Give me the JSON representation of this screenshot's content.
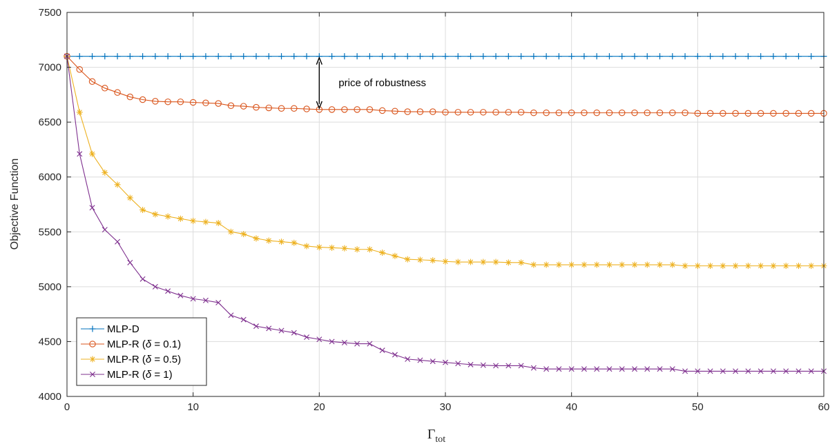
{
  "chart_data": {
    "type": "line",
    "xlabel_main": "Γ",
    "xlabel_sub": "tot",
    "ylabel": "Objective Function",
    "xlim": [
      0,
      60
    ],
    "ylim": [
      4000,
      7500
    ],
    "xticks": [
      0,
      10,
      20,
      30,
      40,
      50,
      60
    ],
    "yticks": [
      4000,
      4500,
      5000,
      5500,
      6000,
      6500,
      7000,
      7500
    ],
    "grid": true,
    "legend_position": "bottom-left",
    "x": [
      0,
      1,
      2,
      3,
      4,
      5,
      6,
      7,
      8,
      9,
      10,
      11,
      12,
      13,
      14,
      15,
      16,
      17,
      18,
      19,
      20,
      21,
      22,
      23,
      24,
      25,
      26,
      27,
      28,
      29,
      30,
      31,
      32,
      33,
      34,
      35,
      36,
      37,
      38,
      39,
      40,
      41,
      42,
      43,
      44,
      45,
      46,
      47,
      48,
      49,
      50,
      51,
      52,
      53,
      54,
      55,
      56,
      57,
      58,
      59,
      60
    ],
    "series": [
      {
        "name": "MLP-D",
        "color": "#0072BD",
        "marker": "plus",
        "values": [
          7100,
          7100,
          7100,
          7100,
          7100,
          7100,
          7100,
          7100,
          7100,
          7100,
          7100,
          7100,
          7100,
          7100,
          7100,
          7100,
          7100,
          7100,
          7100,
          7100,
          7100,
          7100,
          7100,
          7100,
          7100,
          7100,
          7100,
          7100,
          7100,
          7100,
          7100,
          7100,
          7100,
          7100,
          7100,
          7100,
          7100,
          7100,
          7100,
          7100,
          7100,
          7100,
          7100,
          7100,
          7100,
          7100,
          7100,
          7100,
          7100,
          7100,
          7100,
          7100,
          7100,
          7100,
          7100,
          7100,
          7100,
          7100,
          7100,
          7100,
          7100
        ]
      },
      {
        "name_prefix": "MLP-R (",
        "name_symbol": "δ",
        "name_suffix": " = 0.1)",
        "color": "#D95319",
        "marker": "circle",
        "values": [
          7100,
          6980,
          6870,
          6810,
          6770,
          6730,
          6705,
          6690,
          6685,
          6685,
          6680,
          6675,
          6670,
          6650,
          6645,
          6635,
          6630,
          6625,
          6625,
          6620,
          6615,
          6615,
          6615,
          6615,
          6615,
          6605,
          6600,
          6595,
          6595,
          6595,
          6590,
          6590,
          6590,
          6590,
          6590,
          6590,
          6590,
          6585,
          6585,
          6585,
          6585,
          6585,
          6585,
          6585,
          6585,
          6585,
          6585,
          6585,
          6585,
          6585,
          6580,
          6580,
          6580,
          6580,
          6580,
          6580,
          6580,
          6580,
          6580,
          6580,
          6580
        ]
      },
      {
        "name_prefix": "MLP-R (",
        "name_symbol": "δ",
        "name_suffix": " = 0.5)",
        "color": "#EDB120",
        "marker": "asterisk",
        "values": [
          7100,
          6590,
          6210,
          6040,
          5930,
          5810,
          5700,
          5660,
          5640,
          5620,
          5600,
          5590,
          5580,
          5500,
          5480,
          5440,
          5420,
          5410,
          5400,
          5370,
          5360,
          5355,
          5350,
          5340,
          5340,
          5310,
          5280,
          5250,
          5245,
          5240,
          5230,
          5225,
          5225,
          5225,
          5225,
          5220,
          5220,
          5200,
          5200,
          5200,
          5200,
          5200,
          5200,
          5200,
          5200,
          5200,
          5200,
          5200,
          5200,
          5190,
          5190,
          5190,
          5190,
          5190,
          5190,
          5190,
          5190,
          5190,
          5190,
          5190,
          5190
        ]
      },
      {
        "name_prefix": "MLP-R (",
        "name_symbol": "δ",
        "name_suffix": " = 1)",
        "color": "#7E2F8E",
        "marker": "cross",
        "values": [
          7100,
          6210,
          5720,
          5520,
          5410,
          5220,
          5070,
          5000,
          4960,
          4920,
          4890,
          4875,
          4855,
          4740,
          4700,
          4640,
          4620,
          4600,
          4580,
          4540,
          4520,
          4500,
          4490,
          4480,
          4480,
          4420,
          4380,
          4340,
          4330,
          4320,
          4310,
          4300,
          4290,
          4285,
          4280,
          4280,
          4280,
          4260,
          4250,
          4250,
          4250,
          4250,
          4250,
          4250,
          4250,
          4250,
          4250,
          4250,
          4250,
          4230,
          4230,
          4230,
          4230,
          4230,
          4230,
          4230,
          4230,
          4230,
          4230,
          4230,
          4230
        ]
      }
    ],
    "annotation": {
      "text": "price of robustness",
      "x": 20,
      "y_top": 7100,
      "y_bottom": 6615
    }
  }
}
